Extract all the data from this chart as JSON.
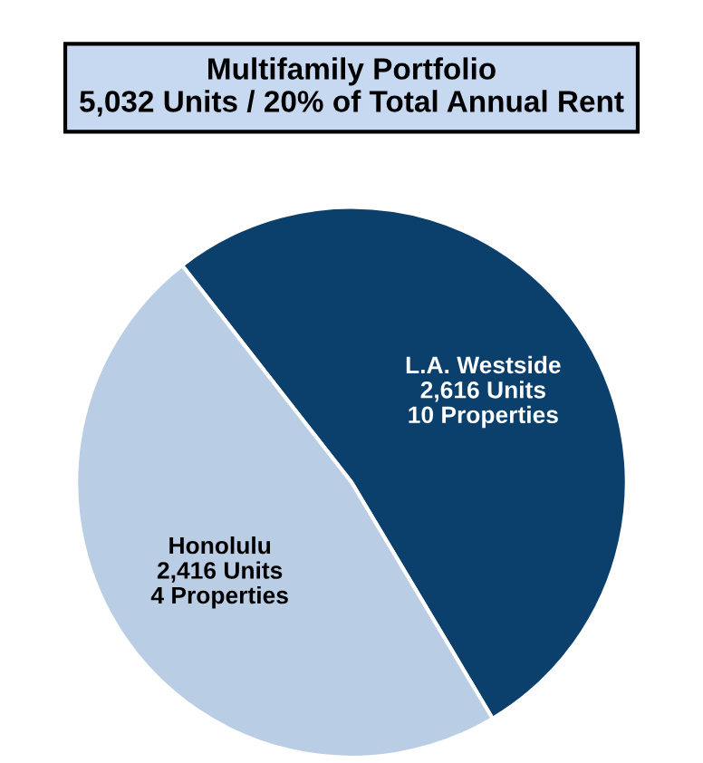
{
  "chart_data": {
    "type": "pie",
    "title": "Multifamily Portfolio\n5,032 Units / 20% of Total Annual Rent",
    "categories": [
      "L.A. Westside",
      "Honolulu"
    ],
    "values": [
      2616,
      2416
    ],
    "colors": [
      "#0b3f6c",
      "#b9cde5"
    ],
    "value_labels": [
      "2,616 Units",
      "2,416 Units"
    ],
    "annotations": [
      "10 Properties",
      "4 Properties"
    ]
  }
}
